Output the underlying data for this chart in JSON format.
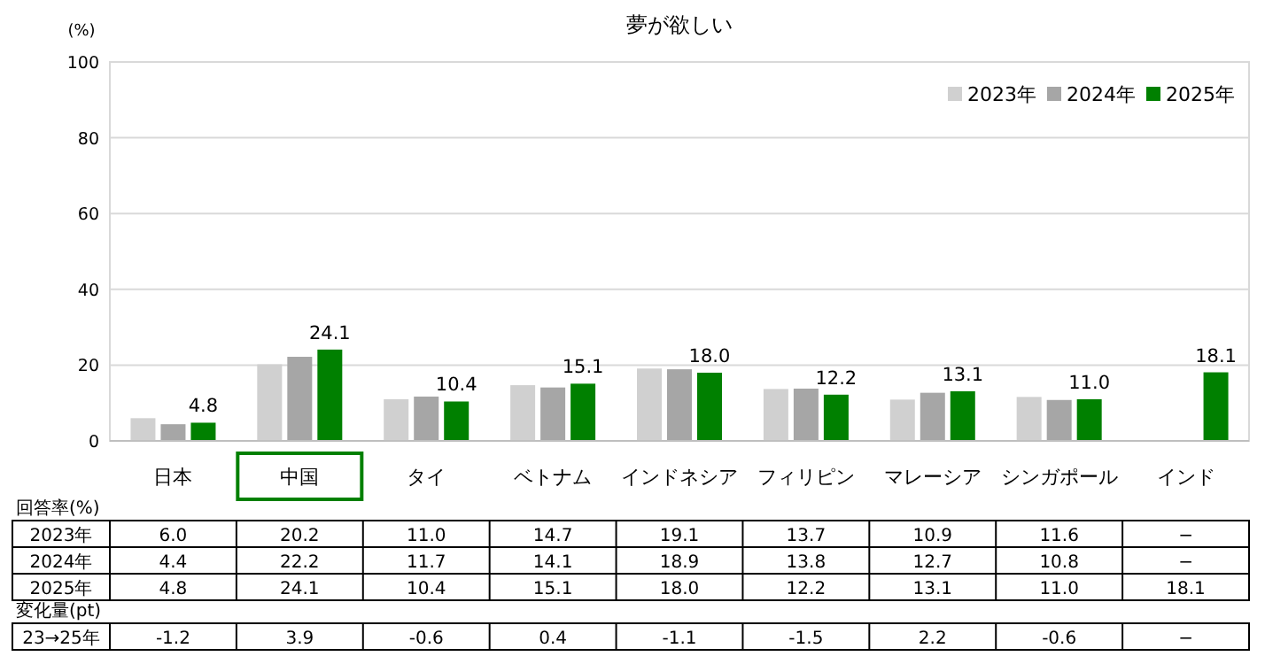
{
  "chart_data": {
    "type": "bar",
    "title": "夢が欲しい",
    "ylabel": "(%)",
    "categories": [
      "日本",
      "中国",
      "タイ",
      "ベトナム",
      "インドネシア",
      "フィリピン",
      "マレーシア",
      "シンガポール",
      "インド"
    ],
    "series": [
      {
        "name": "2023年",
        "color": "#d0d0d0",
        "values": [
          6.0,
          20.2,
          11.0,
          14.7,
          19.1,
          13.7,
          10.9,
          11.6,
          null
        ]
      },
      {
        "name": "2024年",
        "color": "#a6a6a6",
        "values": [
          4.4,
          22.2,
          11.7,
          14.1,
          18.9,
          13.8,
          12.7,
          10.8,
          null
        ]
      },
      {
        "name": "2025年",
        "color": "#008000",
        "values": [
          4.8,
          24.1,
          10.4,
          15.1,
          18.0,
          12.2,
          13.1,
          11.0,
          18.1
        ],
        "value_labels": [
          "4.8",
          "24.1",
          "10.4",
          "15.1",
          "18.0",
          "12.2",
          "13.1",
          "11.0",
          "18.1"
        ]
      }
    ],
    "ylim": [
      0,
      100
    ],
    "yticks": [
      0,
      20,
      40,
      60,
      80,
      100
    ],
    "grid": "y",
    "legend": "top right",
    "annotations": [
      "回答率(%)",
      "6.0",
      "20.2",
      "11.0",
      "14.7",
      "19.1",
      "13.7",
      "10.9",
      "11.6",
      "−",
      "4.4",
      "22.2",
      "11.7",
      "14.1",
      "18.9",
      "13.8",
      "12.7",
      "10.8",
      "−",
      "4.8",
      "24.1",
      "10.4",
      "15.1",
      "18.0",
      "12.2",
      "13.1",
      "11.0",
      "18.1",
      "変化量(pt)",
      "23→25年",
      "-1.2",
      "3.9",
      "-0.6",
      "0.4",
      "-1.1",
      "-1.5",
      "2.2",
      "-0.6",
      "−"
    ]
  }
}
